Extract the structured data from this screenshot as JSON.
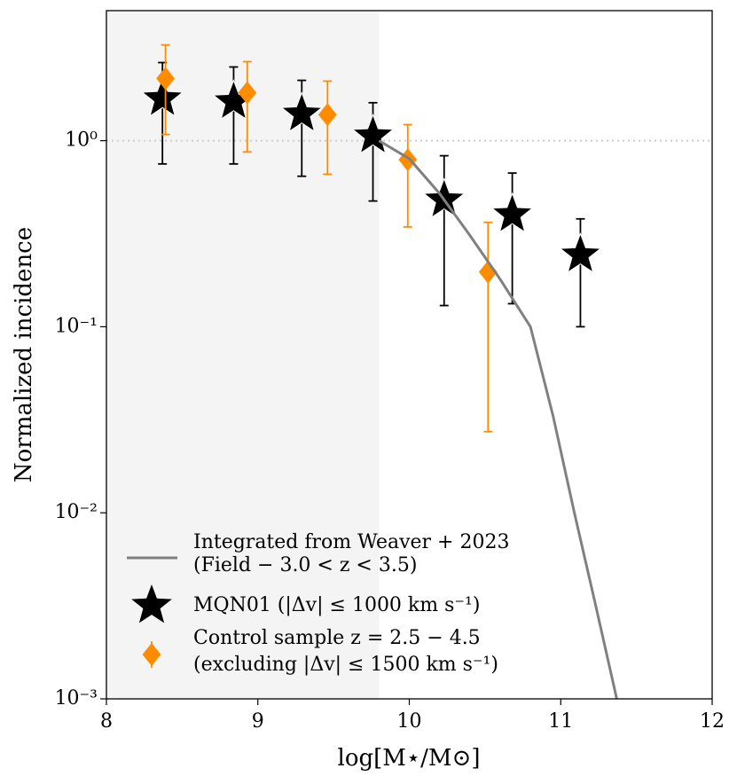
{
  "chart_data": {
    "type": "scatter",
    "xlabel": "log[M⋆/M⊙]",
    "ylabel": "Normalized incidence",
    "xlim": [
      8,
      12
    ],
    "ylim": [
      0.001,
      5
    ],
    "xticks": [
      8,
      9,
      10,
      11,
      12
    ],
    "yticks": [
      {
        "value": 0.001,
        "label": "10⁻³"
      },
      {
        "value": 0.01,
        "label": "10⁻²"
      },
      {
        "value": 0.1,
        "label": "10⁻¹"
      },
      {
        "value": 1,
        "label": "10⁰"
      }
    ],
    "log_y": true,
    "shaded_region": [
      8,
      9.8
    ],
    "reference_line": 1,
    "series": [
      {
        "name": [
          "MQN01 (|Δv| ≤ 1000 km s⁻¹)"
        ],
        "marker": "star",
        "color": "#000000",
        "x": [
          8.37,
          8.84,
          9.29,
          9.76,
          10.23,
          10.68,
          11.13
        ],
        "values": [
          1.68,
          1.62,
          1.39,
          1.06,
          0.48,
          0.4,
          0.243
        ],
        "lower": [
          0.75,
          0.75,
          0.644,
          0.474,
          0.13,
          0.133,
          0.1
        ],
        "upper": [
          2.63,
          2.49,
          2.11,
          1.6,
          0.83,
          0.67,
          0.38
        ]
      },
      {
        "name": [
          "Control sample z = 2.5 − 4.5",
          "(excluding |Δv| ≤ 1500 km s⁻¹)"
        ],
        "marker": "diamond",
        "color": "#ff8c00",
        "x": [
          8.39,
          8.93,
          9.46,
          9.99,
          10.52
        ],
        "values": [
          2.16,
          1.81,
          1.38,
          0.79,
          0.197
        ],
        "lower": [
          1.08,
          0.87,
          0.66,
          0.344,
          0.0273
        ],
        "upper": [
          3.27,
          2.66,
          2.09,
          1.22,
          0.364
        ]
      },
      {
        "name": [
          "Integrated from Weaver + 2023",
          "(Field − 3.0 < z < 3.5)"
        ],
        "marker": "line",
        "color": "#808080",
        "x": [
          9.8,
          10.0,
          10.2,
          10.4,
          10.6,
          10.8,
          10.95,
          11.09,
          11.23,
          11.37
        ],
        "values": [
          1.0,
          0.8,
          0.52,
          0.31,
          0.18,
          0.1,
          0.033,
          0.01,
          0.0032,
          0.001
        ]
      }
    ]
  }
}
